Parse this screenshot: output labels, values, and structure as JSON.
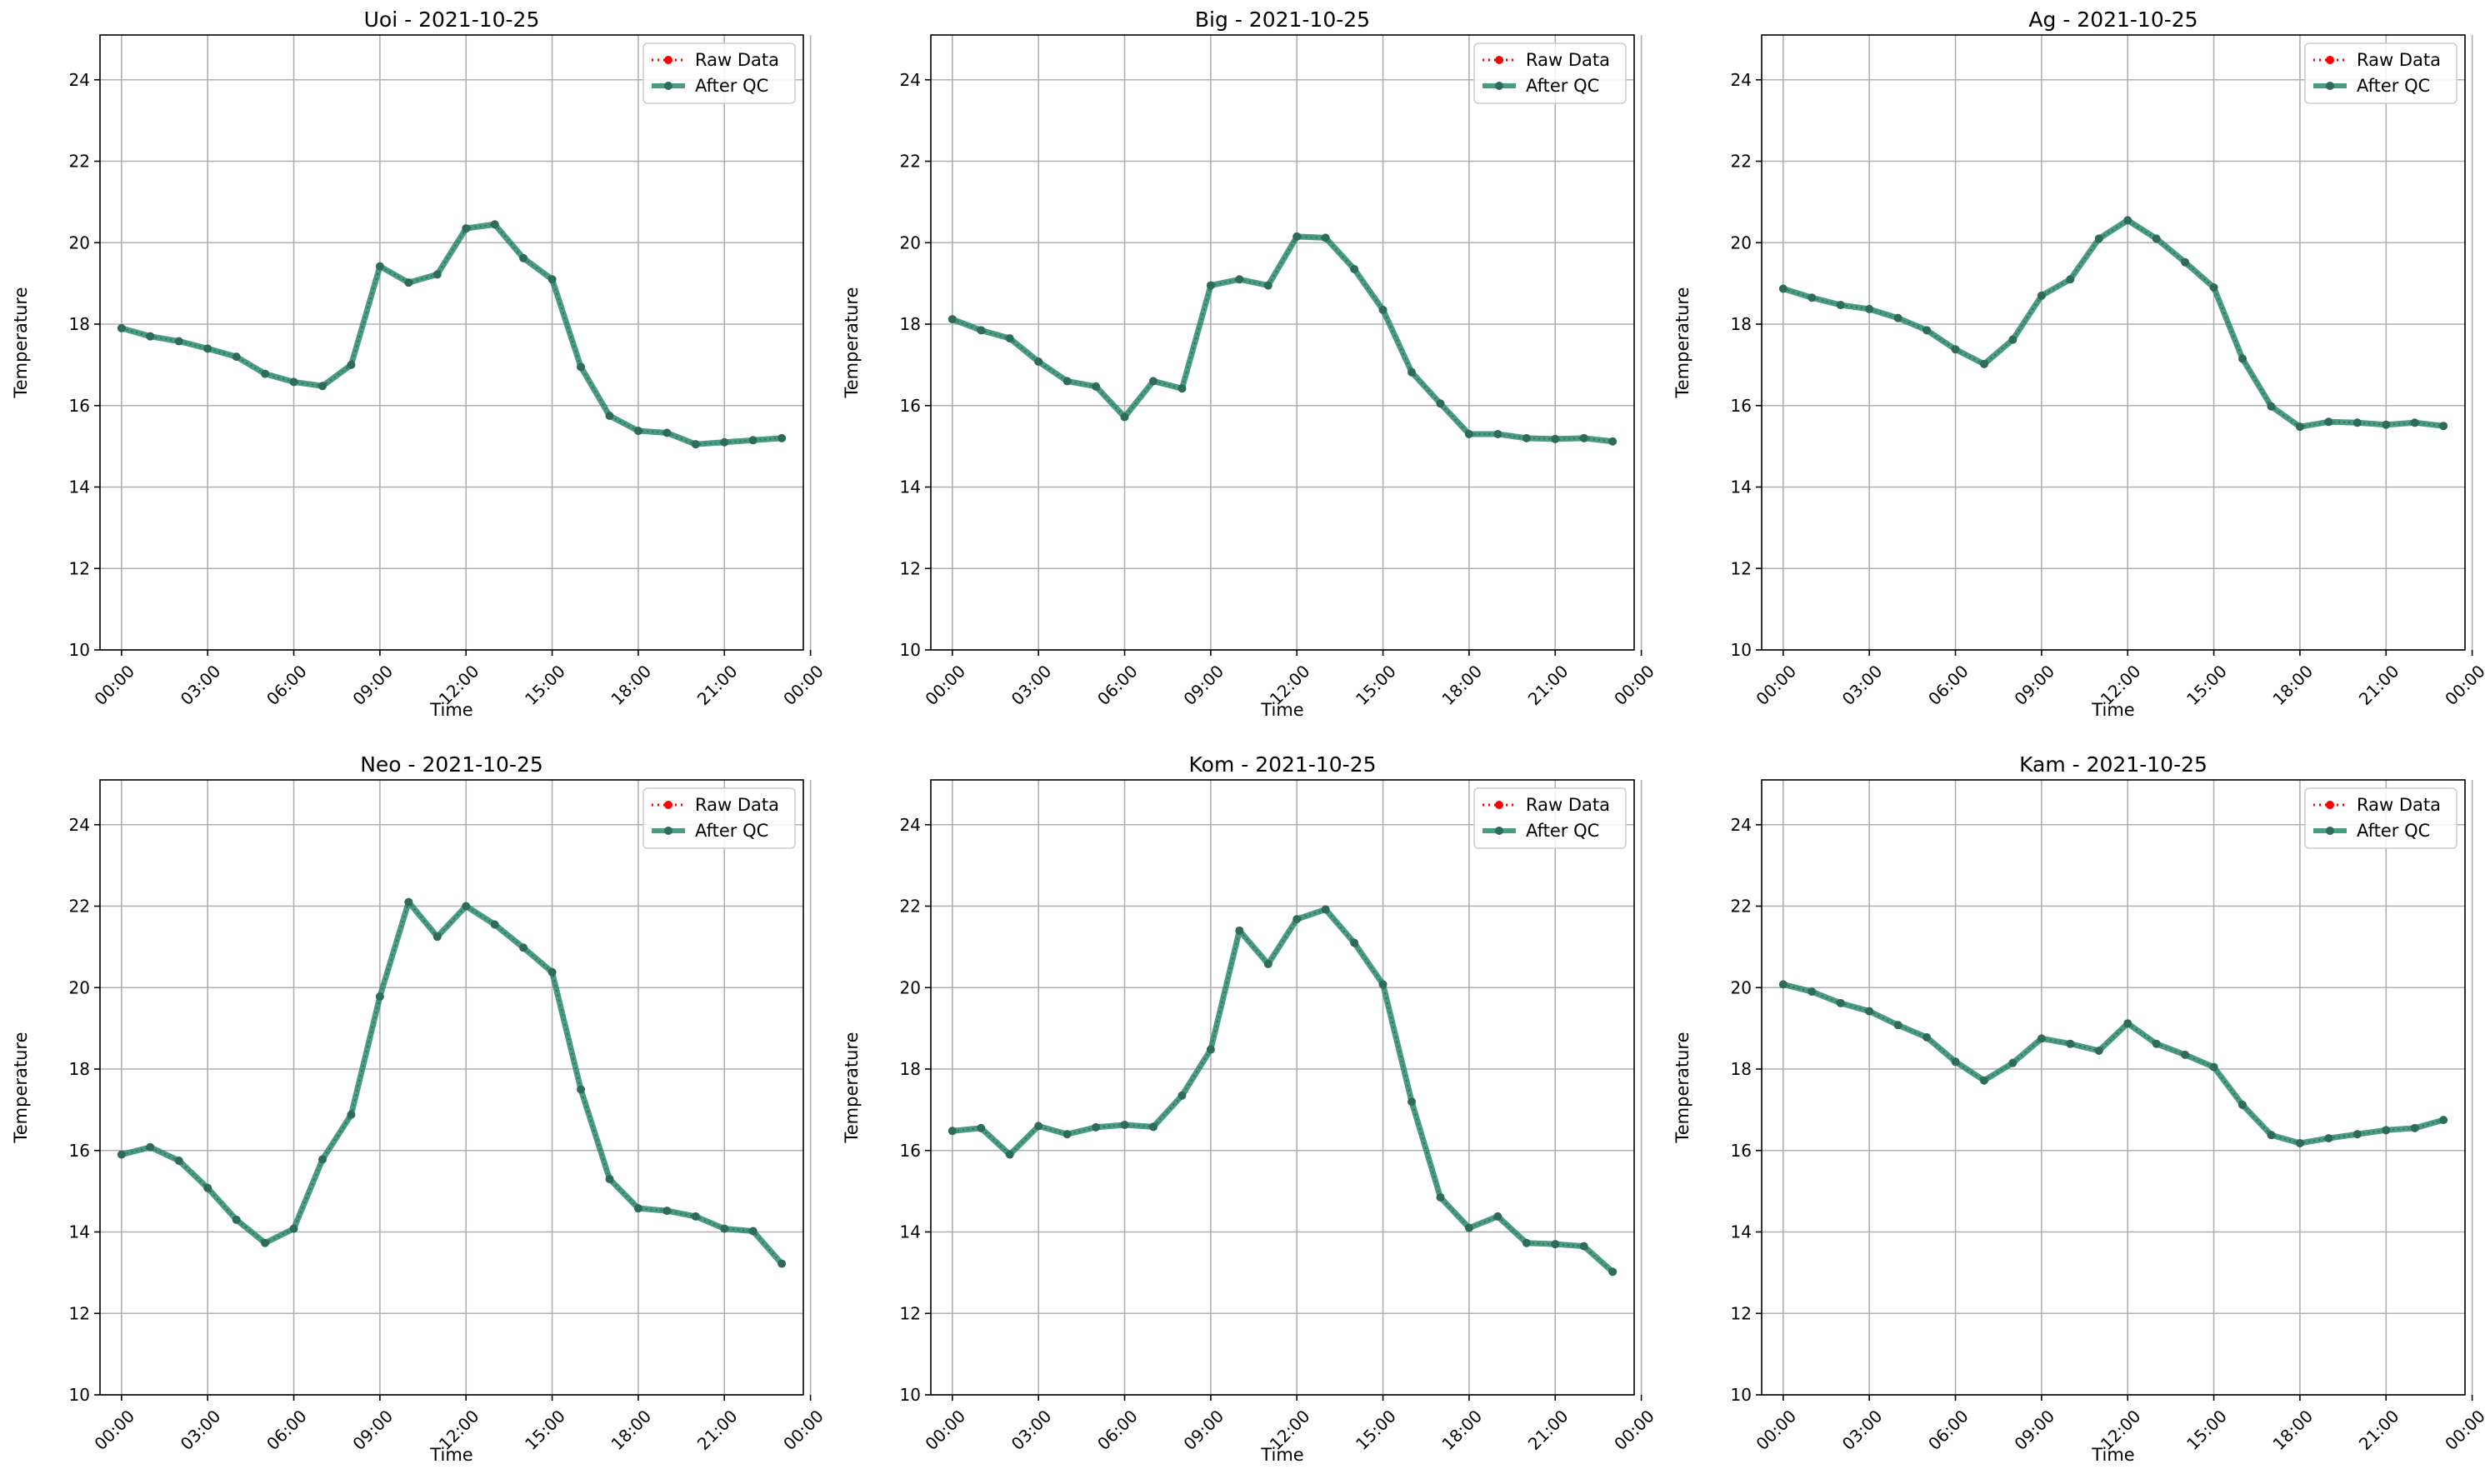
{
  "figure": {
    "colors": {
      "raw": "#ff0000",
      "qc": "#2a8a6e",
      "qc_marker": "#2e6b5a",
      "grid": "#b0b0b0",
      "axis": "#000000",
      "legend_border": "#cccccc"
    }
  },
  "chart_data": [
    {
      "type": "line",
      "title": "Uoi - 2021-10-25",
      "xlabel": "Time",
      "ylabel": "Temperature",
      "xlim": [
        -0.75,
        23.75
      ],
      "ylim": [
        10,
        25.1
      ],
      "xticks": [
        0,
        3,
        6,
        9,
        12,
        15,
        18,
        21,
        24
      ],
      "xtick_labels": [
        "00:00",
        "03:00",
        "06:00",
        "09:00",
        "12:00",
        "15:00",
        "18:00",
        "21:00",
        "00:00"
      ],
      "yticks": [
        10,
        12,
        14,
        16,
        18,
        20,
        22,
        24
      ],
      "grid": true,
      "legend": "top-right",
      "x": [
        0,
        1,
        2,
        3,
        4,
        5,
        6,
        7,
        8,
        9,
        10,
        11,
        12,
        13,
        14,
        15,
        16,
        17,
        18,
        19,
        20,
        21,
        22,
        23
      ],
      "series": [
        {
          "name": "Raw Data",
          "style": "dotted",
          "values": [
            17.9,
            17.7,
            17.58,
            17.4,
            17.2,
            16.78,
            16.58,
            16.48,
            17.0,
            19.42,
            19.02,
            19.22,
            20.35,
            20.45,
            19.62,
            19.1,
            16.95,
            15.75,
            15.38,
            15.33,
            15.05,
            15.1,
            15.15,
            15.2
          ]
        },
        {
          "name": "After QC",
          "style": "solid",
          "values": [
            17.9,
            17.7,
            17.58,
            17.4,
            17.2,
            16.78,
            16.58,
            16.48,
            17.0,
            19.42,
            19.02,
            19.22,
            20.35,
            20.45,
            19.62,
            19.1,
            16.95,
            15.75,
            15.38,
            15.33,
            15.05,
            15.1,
            15.15,
            15.2
          ]
        }
      ]
    },
    {
      "type": "line",
      "title": "Big - 2021-10-25",
      "xlabel": "Time",
      "ylabel": "Temperature",
      "xlim": [
        -0.75,
        23.75
      ],
      "ylim": [
        10,
        25.1
      ],
      "xticks": [
        0,
        3,
        6,
        9,
        12,
        15,
        18,
        21,
        24
      ],
      "xtick_labels": [
        "00:00",
        "03:00",
        "06:00",
        "09:00",
        "12:00",
        "15:00",
        "18:00",
        "21:00",
        "00:00"
      ],
      "yticks": [
        10,
        12,
        14,
        16,
        18,
        20,
        22,
        24
      ],
      "grid": true,
      "legend": "top-right",
      "x": [
        0,
        1,
        2,
        3,
        4,
        5,
        6,
        7,
        8,
        9,
        10,
        11,
        12,
        13,
        14,
        15,
        16,
        17,
        18,
        19,
        20,
        21,
        22,
        23
      ],
      "series": [
        {
          "name": "Raw Data",
          "style": "dotted",
          "values": [
            18.12,
            17.85,
            17.65,
            17.08,
            16.6,
            16.47,
            15.72,
            16.6,
            16.42,
            18.95,
            19.1,
            18.95,
            20.15,
            20.12,
            19.35,
            18.35,
            16.82,
            16.05,
            15.3,
            15.3,
            15.2,
            15.18,
            15.2,
            15.12
          ]
        },
        {
          "name": "After QC",
          "style": "solid",
          "values": [
            18.12,
            17.85,
            17.65,
            17.08,
            16.6,
            16.47,
            15.72,
            16.6,
            16.42,
            18.95,
            19.1,
            18.95,
            20.15,
            20.12,
            19.35,
            18.35,
            16.82,
            16.05,
            15.3,
            15.3,
            15.2,
            15.18,
            15.2,
            15.12
          ]
        }
      ]
    },
    {
      "type": "line",
      "title": "Ag - 2021-10-25",
      "xlabel": "Time",
      "ylabel": "Temperature",
      "xlim": [
        -0.75,
        23.75
      ],
      "ylim": [
        10,
        25.1
      ],
      "xticks": [
        0,
        3,
        6,
        9,
        12,
        15,
        18,
        21,
        24
      ],
      "xtick_labels": [
        "00:00",
        "03:00",
        "06:00",
        "09:00",
        "12:00",
        "15:00",
        "18:00",
        "21:00",
        "00:00"
      ],
      "yticks": [
        10,
        12,
        14,
        16,
        18,
        20,
        22,
        24
      ],
      "grid": true,
      "legend": "top-right",
      "x": [
        0,
        1,
        2,
        3,
        4,
        5,
        6,
        7,
        8,
        9,
        10,
        11,
        12,
        13,
        14,
        15,
        16,
        17,
        18,
        19,
        20,
        21,
        22,
        23
      ],
      "series": [
        {
          "name": "Raw Data",
          "style": "dotted",
          "values": [
            18.87,
            18.65,
            18.47,
            18.37,
            18.15,
            17.85,
            17.38,
            17.02,
            17.62,
            18.7,
            19.1,
            20.1,
            20.55,
            20.1,
            19.52,
            18.9,
            17.15,
            15.98,
            15.48,
            15.6,
            15.58,
            15.53,
            15.58,
            15.5
          ]
        },
        {
          "name": "After QC",
          "style": "solid",
          "values": [
            18.87,
            18.65,
            18.47,
            18.37,
            18.15,
            17.85,
            17.38,
            17.02,
            17.62,
            18.7,
            19.1,
            20.1,
            20.55,
            20.1,
            19.52,
            18.9,
            17.15,
            15.98,
            15.48,
            15.6,
            15.58,
            15.53,
            15.58,
            15.5
          ]
        }
      ]
    },
    {
      "type": "line",
      "title": "Neo - 2021-10-25",
      "xlabel": "Time",
      "ylabel": "Temperature",
      "xlim": [
        -0.75,
        23.75
      ],
      "ylim": [
        10,
        25.1
      ],
      "xticks": [
        0,
        3,
        6,
        9,
        12,
        15,
        18,
        21,
        24
      ],
      "xtick_labels": [
        "00:00",
        "03:00",
        "06:00",
        "09:00",
        "12:00",
        "15:00",
        "18:00",
        "21:00",
        "00:00"
      ],
      "yticks": [
        10,
        12,
        14,
        16,
        18,
        20,
        22,
        24
      ],
      "grid": true,
      "legend": "top-right",
      "x": [
        0,
        1,
        2,
        3,
        4,
        5,
        6,
        7,
        8,
        9,
        10,
        11,
        12,
        13,
        14,
        15,
        16,
        17,
        18,
        19,
        20,
        21,
        22,
        23
      ],
      "series": [
        {
          "name": "Raw Data",
          "style": "dotted",
          "values": [
            15.9,
            16.08,
            15.75,
            15.08,
            14.3,
            13.73,
            14.08,
            15.78,
            16.88,
            19.78,
            22.1,
            21.25,
            22.0,
            21.55,
            20.98,
            20.38,
            17.5,
            15.3,
            14.58,
            14.52,
            14.38,
            14.08,
            14.02,
            13.22
          ]
        },
        {
          "name": "After QC",
          "style": "solid",
          "values": [
            15.9,
            16.08,
            15.75,
            15.08,
            14.3,
            13.73,
            14.08,
            15.78,
            16.88,
            19.78,
            22.1,
            21.25,
            22.0,
            21.55,
            20.98,
            20.38,
            17.5,
            15.3,
            14.58,
            14.52,
            14.38,
            14.08,
            14.02,
            13.22
          ]
        }
      ]
    },
    {
      "type": "line",
      "title": "Kom - 2021-10-25",
      "xlabel": "Time",
      "ylabel": "Temperature",
      "xlim": [
        -0.75,
        23.75
      ],
      "ylim": [
        10,
        25.1
      ],
      "xticks": [
        0,
        3,
        6,
        9,
        12,
        15,
        18,
        21,
        24
      ],
      "xtick_labels": [
        "00:00",
        "03:00",
        "06:00",
        "09:00",
        "12:00",
        "15:00",
        "18:00",
        "21:00",
        "00:00"
      ],
      "yticks": [
        10,
        12,
        14,
        16,
        18,
        20,
        22,
        24
      ],
      "grid": true,
      "legend": "top-right",
      "x": [
        0,
        1,
        2,
        3,
        4,
        5,
        6,
        7,
        8,
        9,
        10,
        11,
        12,
        13,
        14,
        15,
        16,
        17,
        18,
        19,
        20,
        21,
        22,
        23
      ],
      "series": [
        {
          "name": "Raw Data",
          "style": "dotted",
          "values": [
            16.48,
            16.55,
            15.9,
            16.6,
            16.4,
            16.57,
            16.63,
            16.58,
            17.35,
            18.48,
            21.4,
            20.58,
            21.68,
            21.92,
            21.1,
            20.08,
            17.2,
            14.85,
            14.1,
            14.38,
            13.73,
            13.7,
            13.65,
            13.02
          ]
        },
        {
          "name": "After QC",
          "style": "solid",
          "values": [
            16.48,
            16.55,
            15.9,
            16.6,
            16.4,
            16.57,
            16.63,
            16.58,
            17.35,
            18.48,
            21.4,
            20.58,
            21.68,
            21.92,
            21.1,
            20.08,
            17.2,
            14.85,
            14.1,
            14.38,
            13.73,
            13.7,
            13.65,
            13.02
          ]
        }
      ]
    },
    {
      "type": "line",
      "title": "Kam - 2021-10-25",
      "xlabel": "Time",
      "ylabel": "Temperature",
      "xlim": [
        -0.75,
        23.75
      ],
      "ylim": [
        10,
        25.1
      ],
      "xticks": [
        0,
        3,
        6,
        9,
        12,
        15,
        18,
        21,
        24
      ],
      "xtick_labels": [
        "00:00",
        "03:00",
        "06:00",
        "09:00",
        "12:00",
        "15:00",
        "18:00",
        "21:00",
        "00:00"
      ],
      "yticks": [
        10,
        12,
        14,
        16,
        18,
        20,
        22,
        24
      ],
      "grid": true,
      "legend": "top-right",
      "x": [
        0,
        1,
        2,
        3,
        4,
        5,
        6,
        7,
        8,
        9,
        10,
        11,
        12,
        13,
        14,
        15,
        16,
        17,
        18,
        19,
        20,
        21,
        22,
        23
      ],
      "series": [
        {
          "name": "Raw Data",
          "style": "dotted",
          "values": [
            20.08,
            19.9,
            19.62,
            19.42,
            19.08,
            18.78,
            18.18,
            17.72,
            18.15,
            18.75,
            18.62,
            18.45,
            19.12,
            18.62,
            18.35,
            18.05,
            17.12,
            16.38,
            16.18,
            16.3,
            16.4,
            16.5,
            16.55,
            16.75
          ]
        },
        {
          "name": "After QC",
          "style": "solid",
          "values": [
            20.08,
            19.9,
            19.62,
            19.42,
            19.08,
            18.78,
            18.18,
            17.72,
            18.15,
            18.75,
            18.62,
            18.45,
            19.12,
            18.62,
            18.35,
            18.05,
            17.12,
            16.38,
            16.18,
            16.3,
            16.4,
            16.5,
            16.55,
            16.75
          ]
        }
      ]
    }
  ]
}
